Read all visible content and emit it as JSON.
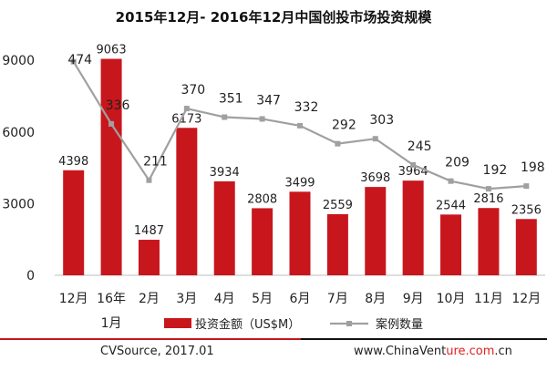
{
  "title": "2015年12月- 2016年12月中国创投市场投资规模",
  "chart_data": {
    "type": "bar",
    "categories": [
      "12月",
      "16年",
      "2月",
      "3月",
      "4月",
      "5月",
      "6月",
      "7月",
      "8月",
      "9月",
      "10月",
      "11月",
      "12月"
    ],
    "category_sublabels": [
      "",
      "1月",
      "",
      "",
      "",
      "",
      "",
      "",
      "",
      "",
      "",
      "",
      ""
    ],
    "series": [
      {
        "name": "投资金额（US$M）",
        "type": "bar",
        "axis": "left",
        "color": "#c8161d",
        "values": [
          4398,
          9063,
          1487,
          6173,
          3934,
          2808,
          3499,
          2559,
          3698,
          3964,
          2544,
          2816,
          2356
        ]
      },
      {
        "name": "案例数量",
        "type": "line",
        "axis": "right",
        "color": "#a0a0a0",
        "values": [
          474,
          336,
          211,
          370,
          351,
          347,
          332,
          292,
          303,
          245,
          209,
          192,
          198
        ]
      }
    ],
    "y_left": {
      "ticks": [
        0,
        3000,
        6000,
        9000
      ],
      "range": [
        0,
        10000
      ]
    },
    "y_right": {
      "range": [
        0,
        530
      ]
    },
    "legend_position": "bottom"
  },
  "footer": {
    "source": "CVSource, 2017.01",
    "site_prefix": "www.ChinaVent",
    "site_watermark": "ure.com",
    "site_suffix": ".cn"
  }
}
